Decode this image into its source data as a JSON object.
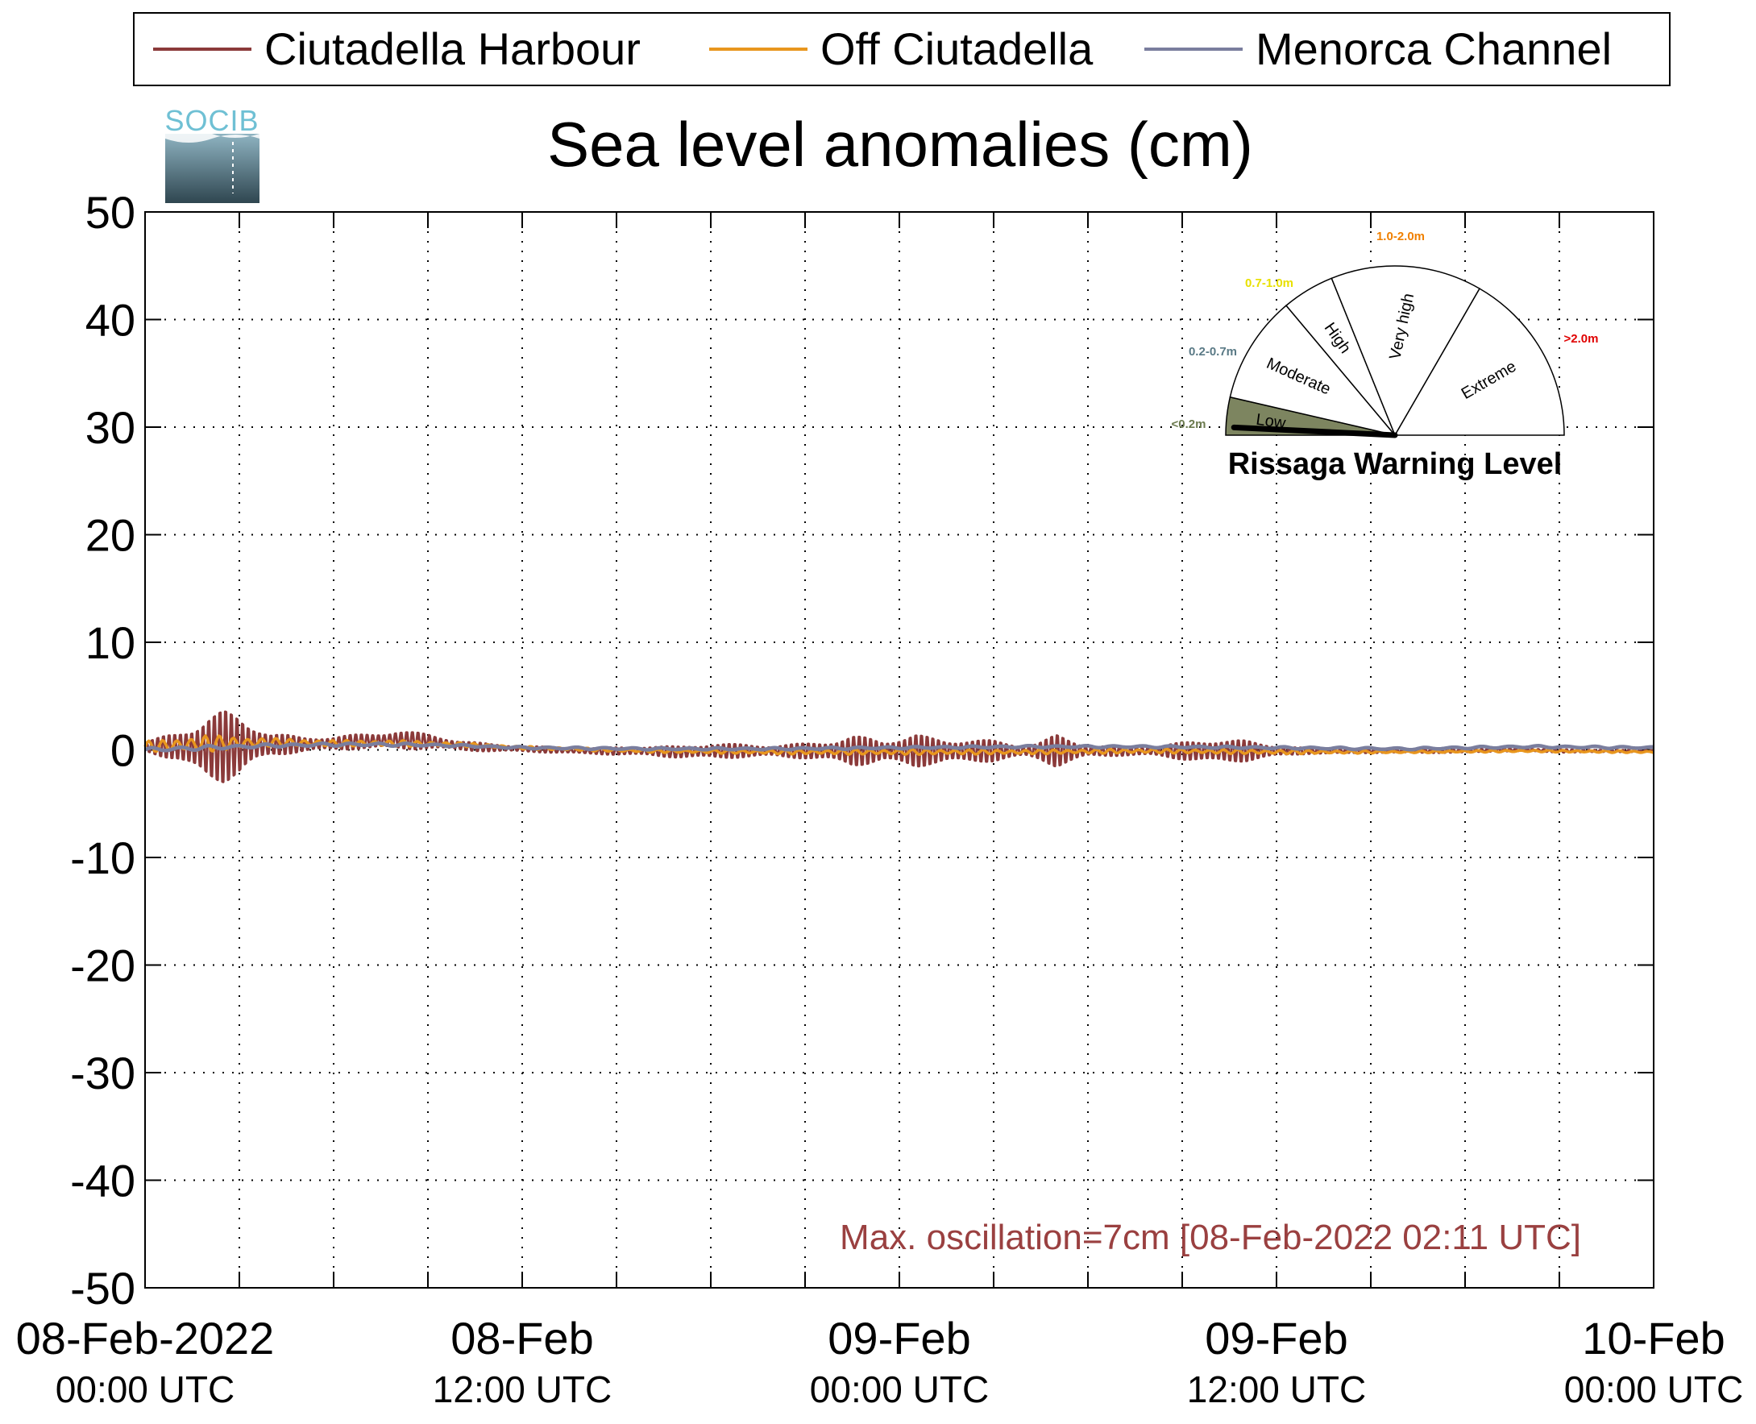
{
  "chart_data": {
    "type": "line",
    "title": "Sea level anomalies (cm)",
    "logo_text": "SOCIB",
    "y_ticks": [
      "50",
      "40",
      "30",
      "20",
      "10",
      "0",
      "-10",
      "-20",
      "-30",
      "-40",
      "-50"
    ],
    "ylim": [
      -50,
      50
    ],
    "x_range_hours": [
      0,
      48
    ],
    "grid": true,
    "legend_position": "top",
    "x_ticks": [
      {
        "hour": 0,
        "date": "08-Feb-2022",
        "time": "00:00 UTC"
      },
      {
        "hour": 12,
        "date": "08-Feb",
        "time": "12:00 UTC"
      },
      {
        "hour": 24,
        "date": "09-Feb",
        "time": "00:00 UTC"
      },
      {
        "hour": 36,
        "date": "09-Feb",
        "time": "12:00 UTC"
      },
      {
        "hour": 48,
        "date": "10-Feb",
        "time": "00:00 UTC"
      }
    ],
    "minor_x_hours": [
      3,
      6,
      9,
      15,
      18,
      21,
      27,
      30,
      33,
      39,
      42,
      45
    ],
    "series": [
      {
        "name": "Ciutadella Harbour",
        "color": "#8B3A3A",
        "envelope_hours": [
          0,
          1,
          1.5,
          2,
          2.5,
          3,
          3.5,
          4,
          5,
          6,
          7,
          8,
          9,
          10,
          11,
          12,
          13,
          14,
          15,
          16,
          17,
          18,
          19,
          20,
          21,
          22,
          22.5,
          23,
          23.5,
          24,
          24.5,
          25,
          25.5,
          26,
          27,
          28,
          28.5,
          29,
          29.5,
          30,
          31,
          32,
          33,
          34,
          35,
          36,
          37,
          38,
          39,
          40,
          41,
          42,
          43,
          44,
          45,
          46,
          47,
          48
        ],
        "envelope_amp_cm": [
          0.5,
          1.5,
          2.5,
          3.5,
          3.8,
          3.2,
          2.2,
          1.2,
          0.8,
          0.7,
          0.8,
          1.0,
          0.8,
          0.5,
          0.4,
          0.3,
          0.3,
          0.3,
          0.4,
          0.5,
          0.6,
          0.8,
          0.7,
          0.6,
          0.8,
          1.2,
          1.6,
          1.4,
          1.1,
          1.5,
          1.8,
          1.4,
          1.2,
          1.3,
          1.1,
          0.6,
          1.0,
          1.7,
          1.2,
          0.6,
          0.5,
          0.5,
          0.9,
          1.3,
          1.1,
          0.6,
          0.3,
          0.3,
          0.2,
          0.2,
          0.2,
          0.2,
          0.15,
          0.15,
          0.15,
          0.15,
          0.1,
          0.1
        ],
        "envelope_mean_cm": [
          0.3,
          0.3,
          0.2,
          0.2,
          0.3,
          0.4,
          0.5,
          0.5,
          0.5,
          0.6,
          0.8,
          0.9,
          0.8,
          0.4,
          0.2,
          0.1,
          0.0,
          -0.1,
          -0.1,
          -0.1,
          -0.2,
          -0.1,
          -0.1,
          -0.1,
          -0.1,
          -0.1,
          -0.1,
          -0.1,
          -0.1,
          -0.1,
          -0.1,
          -0.1,
          -0.1,
          -0.1,
          -0.1,
          -0.1,
          -0.1,
          -0.1,
          -0.1,
          -0.1,
          -0.1,
          -0.1,
          -0.1,
          -0.1,
          -0.1,
          -0.1,
          -0.1,
          -0.1,
          -0.1,
          -0.1,
          -0.1,
          -0.1,
          0.0,
          0.0,
          -0.1,
          -0.1,
          -0.1,
          -0.1
        ]
      },
      {
        "name": "Off Ciutadella",
        "color": "#E8961E",
        "envelope_hours": [
          0,
          2,
          4,
          6,
          8,
          10,
          12,
          16,
          20,
          24,
          28,
          32,
          36,
          40,
          44,
          48
        ],
        "envelope_amp_cm": [
          0.5,
          0.8,
          0.4,
          0.3,
          0.3,
          0.2,
          0.15,
          0.15,
          0.2,
          0.25,
          0.2,
          0.2,
          0.2,
          0.1,
          0.1,
          0.1
        ],
        "envelope_mean_cm": [
          0.3,
          0.6,
          0.7,
          0.6,
          0.6,
          0.5,
          0.2,
          -0.1,
          -0.2,
          -0.2,
          -0.2,
          -0.1,
          -0.2,
          -0.2,
          -0.1,
          -0.2
        ]
      },
      {
        "name": "Menorca Channel",
        "color": "#7A7E9E",
        "envelope_hours": [
          0,
          2,
          4,
          6,
          8,
          10,
          12,
          16,
          20,
          24,
          28,
          32,
          36,
          40,
          44,
          48
        ],
        "envelope_amp_cm": [
          0.2,
          0.2,
          0.15,
          0.15,
          0.15,
          0.1,
          0.1,
          0.1,
          0.1,
          0.1,
          0.1,
          0.1,
          0.1,
          0.1,
          0.1,
          0.1
        ],
        "envelope_mean_cm": [
          0.0,
          0.2,
          0.4,
          0.5,
          0.5,
          0.4,
          0.2,
          0.1,
          0.1,
          0.2,
          0.3,
          0.3,
          0.2,
          0.1,
          0.3,
          0.2
        ]
      }
    ],
    "annotation": "Max. oscillation=7cm [08-Feb-2022 02:11 UTC]",
    "annotation_color": "#9A4040",
    "gauge": {
      "title": "Rissaga Warning Level",
      "current_level": "Low",
      "needle_value_m": 0.05,
      "sectors": [
        {
          "label": "Low",
          "range": "<0.2m",
          "range_color": "#6B7A4E",
          "fill": "#7D8560"
        },
        {
          "label": "Moderate",
          "range": "0.2-0.7m",
          "range_color": "#5A7A86",
          "fill": "#ffffff"
        },
        {
          "label": "High",
          "range": "0.7-1.0m",
          "range_color": "#E8E000",
          "fill": "#ffffff"
        },
        {
          "label": "Very high",
          "range": "1.0-2.0m",
          "range_color": "#F08000",
          "fill": "#ffffff"
        },
        {
          "label": "Extreme",
          "range": ">2.0m",
          "range_color": "#E00000",
          "fill": "#ffffff"
        }
      ]
    }
  }
}
